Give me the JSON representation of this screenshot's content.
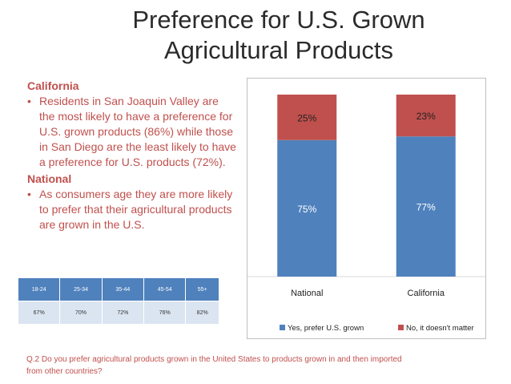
{
  "slide": {
    "title_line1": "Preference for U.S. Grown",
    "title_line2": "Agricultural Products"
  },
  "text": {
    "california_heading": "California",
    "california_bullet": "Residents in San Joaquin Valley are the most likely to have a preference for U.S. grown products (86%) while those in San Diego are the least likely to have a preference for U.S. products (72%).",
    "national_heading": "National",
    "national_bullet": "As consumers age they are more likely to prefer that their agricultural products are grown in the U.S."
  },
  "age_table": {
    "headers": [
      "18-24",
      "25-34",
      "35-44",
      "45-54",
      "55+"
    ],
    "values": [
      "67%",
      "70%",
      "72%",
      "76%",
      "82%"
    ]
  },
  "footnote": "Q.2 Do you prefer agricultural products grown in the United States to products grown in and then imported from other countries?",
  "colors": {
    "yes": "#4f81bd",
    "no": "#c0504d",
    "accent_text": "#c0504d"
  },
  "chart_data": {
    "type": "bar",
    "stacked": true,
    "categories": [
      "National",
      "California"
    ],
    "series": [
      {
        "name": "Yes, prefer U.S. grown",
        "values": [
          75,
          77
        ],
        "labels": [
          "75%",
          "77%"
        ],
        "color": "#4f81bd"
      },
      {
        "name": "No, it doesn't matter",
        "values": [
          25,
          23
        ],
        "labels": [
          "25%",
          "23%"
        ],
        "color": "#c0504d"
      }
    ],
    "ylim": [
      0,
      100
    ],
    "grid": false,
    "legend": "bottom"
  }
}
